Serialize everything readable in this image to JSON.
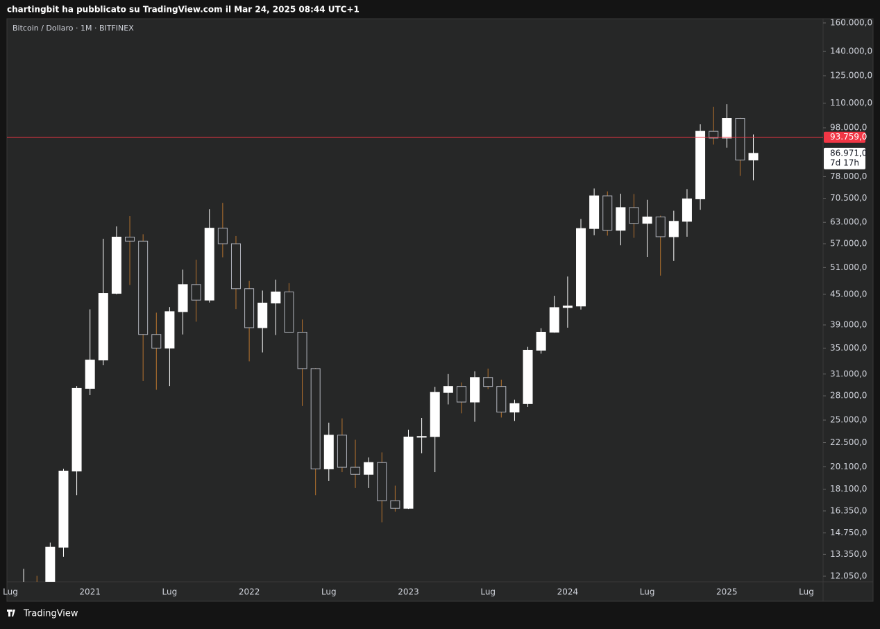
{
  "header": "chartingbit ha pubblicato su TradingView.com il Mar 24, 2025 08:44 UTC+1",
  "footer": "TradingView",
  "chart_data": {
    "type": "candlestick",
    "title": "Bitcoin / Dollaro · 1M · BITFINEX",
    "log_scale": true,
    "up_color": "#ffffff",
    "down_color": "#b2b5be",
    "down_wick_color": "#b8742e",
    "categories": [
      "Lug",
      null,
      null,
      null,
      null,
      null,
      "2021",
      null,
      null,
      null,
      null,
      null,
      "Lug",
      null,
      null,
      null,
      null,
      null,
      "2022",
      null,
      null,
      null,
      null,
      null,
      "Lug",
      null,
      null,
      null,
      null,
      null,
      "2023",
      null,
      null,
      null,
      null,
      null,
      "Lug",
      null,
      null,
      null,
      null,
      null,
      "2024",
      null,
      null,
      null,
      null,
      null,
      "Lug",
      null,
      null,
      null,
      null,
      null,
      "2025",
      null,
      null,
      null,
      null,
      null,
      "Lug"
    ],
    "open": [
      null,
      11350,
      11650,
      10780,
      13800,
      19700,
      28990,
      33100,
      45200,
      58800,
      57700,
      37300,
      35000,
      41500,
      47100,
      43800,
      61300,
      57000,
      46200,
      38500,
      43200,
      45500,
      37700,
      31800,
      19900,
      23300,
      20050,
      19400,
      20500,
      17150,
      16550,
      23100,
      23150,
      28450,
      29250,
      27200,
      30500,
      29250,
      25950,
      27000,
      34650,
      37700,
      42300,
      42600,
      61200,
      71300,
      60700,
      67500,
      62700,
      64600,
      58900,
      63300,
      70300,
      96400,
      93400,
      102400,
      84300,
      null,
      null,
      null,
      null
    ],
    "high": [
      null,
      12470,
      12070,
      14100,
      19900,
      29300,
      41950,
      58350,
      61800,
      64900,
      59600,
      41300,
      42400,
      50500,
      52900,
      67000,
      69000,
      59100,
      47900,
      45800,
      48200,
      47400,
      40000,
      31900,
      24700,
      25200,
      22800,
      21000,
      21500,
      18400,
      23900,
      25250,
      29200,
      31000,
      29800,
      31400,
      31800,
      30200,
      27500,
      35200,
      38400,
      44700,
      48900,
      64000,
      73800,
      72800,
      72000,
      71900,
      70000,
      65000,
      66500,
      73600,
      99600,
      108100,
      109400,
      102700,
      95000,
      null,
      null,
      null,
      null
    ],
    "low": [
      null,
      10540,
      9880,
      10550,
      13200,
      17600,
      28100,
      32300,
      45000,
      47000,
      30000,
      28800,
      29300,
      37300,
      39600,
      43300,
      53500,
      42000,
      32900,
      34300,
      37200,
      37700,
      26700,
      17600,
      18800,
      19600,
      18200,
      18200,
      15500,
      16300,
      16500,
      21400,
      19600,
      26900,
      25800,
      24800,
      28900,
      25300,
      24900,
      26600,
      34100,
      37600,
      38500,
      41900,
      59300,
      59200,
      56600,
      58600,
      53600,
      49100,
      52600,
      58900,
      66800,
      90600,
      89300,
      78300,
      76700,
      null,
      null,
      null,
      null
    ],
    "close": [
      null,
      11650,
      10780,
      13800,
      19700,
      28990,
      33100,
      45200,
      58800,
      57700,
      37300,
      35000,
      41500,
      47100,
      43800,
      61300,
      57000,
      46200,
      38500,
      43200,
      45500,
      37700,
      31800,
      19900,
      23300,
      20050,
      19400,
      20500,
      17150,
      16550,
      23100,
      23150,
      28450,
      29250,
      27200,
      30500,
      29250,
      25950,
      27000,
      34650,
      37700,
      42300,
      42600,
      61200,
      71300,
      60700,
      67500,
      62700,
      64600,
      58900,
      63300,
      70300,
      96400,
      93400,
      102400,
      84300,
      86971,
      null,
      null,
      null,
      null
    ],
    "ylim": [
      11740,
      163140
    ],
    "yticks": [
      {
        "value": 160000,
        "label": "160.000,0"
      },
      {
        "value": 140000,
        "label": "140.000,0"
      },
      {
        "value": 125000,
        "label": "125.000,0"
      },
      {
        "value": 110000,
        "label": "110.000,0"
      },
      {
        "value": 98000,
        "label": "98.000,0"
      },
      {
        "value": 78000,
        "label": "78.000,0"
      },
      {
        "value": 70500,
        "label": "70.500,0"
      },
      {
        "value": 63000,
        "label": "63.000,0"
      },
      {
        "value": 57000,
        "label": "57.000,0"
      },
      {
        "value": 51000,
        "label": "51.000,0"
      },
      {
        "value": 45000,
        "label": "45.000,0"
      },
      {
        "value": 39000,
        "label": "39.000,0"
      },
      {
        "value": 35000,
        "label": "35.000,0"
      },
      {
        "value": 31000,
        "label": "31.000,0"
      },
      {
        "value": 28000,
        "label": "28.000,0"
      },
      {
        "value": 25000,
        "label": "25.000,0"
      },
      {
        "value": 22500,
        "label": "22.500,0"
      },
      {
        "value": 20100,
        "label": "20.100,0"
      },
      {
        "value": 18100,
        "label": "18.100,0"
      },
      {
        "value": 16350,
        "label": "16.350,0"
      },
      {
        "value": 14750,
        "label": "14.750,0"
      },
      {
        "value": 13350,
        "label": "13.350,0"
      },
      {
        "value": 12050,
        "label": "12.050,0"
      }
    ],
    "price_line": {
      "value": 93759,
      "label": "93.759,0",
      "color": "#f23645"
    },
    "last_price": {
      "value": 86971,
      "label": "86.971,0",
      "countdown": "7d 17h"
    }
  }
}
